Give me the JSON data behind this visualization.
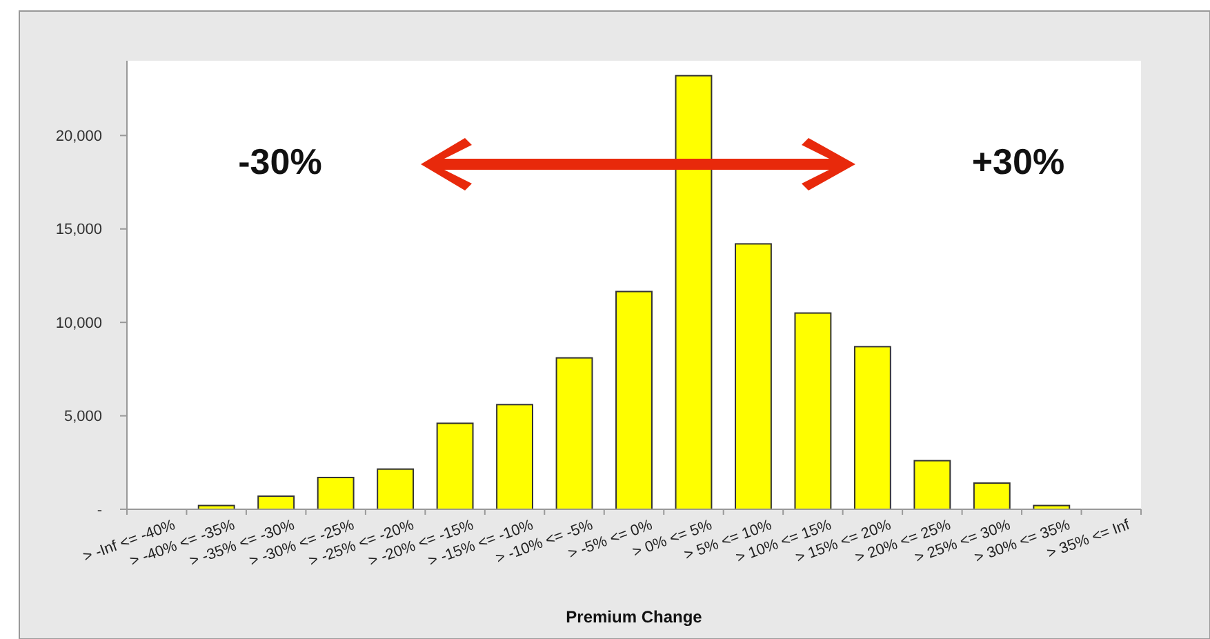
{
  "chart_data": {
    "type": "bar",
    "xlabel": "Premium Change",
    "categories": [
      "> -Inf <= -40%",
      "> -40% <= -35%",
      "> -35% <= -30%",
      "> -30% <= -25%",
      "> -25% <= -20%",
      "> -20% <= -15%",
      "> -15% <= -10%",
      "> -10% <= -5%",
      "> -5% <= 0%",
      "> 0% <= 5%",
      "> 5% <= 10%",
      "> 10% <= 15%",
      "> 15% <= 20%",
      "> 20% <= 25%",
      "> 25% <= 30%",
      "> 30% <= 35%",
      "> 35% <= Inf"
    ],
    "values": [
      0,
      200,
      700,
      1700,
      2150,
      4600,
      5600,
      8100,
      11650,
      23200,
      14200,
      10500,
      8700,
      2600,
      1400,
      200,
      0
    ],
    "color": "#ffff00",
    "ylim": [
      0,
      24000
    ],
    "yticks": [
      {
        "value": 0,
        "label": "-"
      },
      {
        "value": 5000,
        "label": "5,000"
      },
      {
        "value": 10000,
        "label": "10,000"
      },
      {
        "value": 15000,
        "label": "15,000"
      },
      {
        "value": 20000,
        "label": "20,000"
      }
    ],
    "grid": false,
    "annotations": [
      "-30%",
      "+30%"
    ]
  }
}
